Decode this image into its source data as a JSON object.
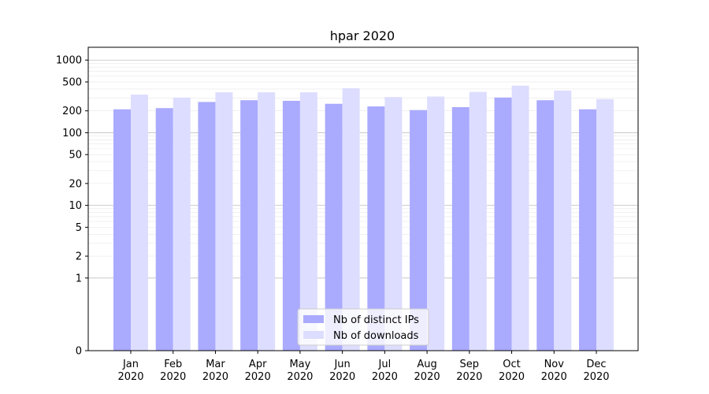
{
  "chart_data": {
    "type": "bar",
    "title": "hpar 2020",
    "xlabel": "",
    "ylabel": "",
    "scale": "symlog",
    "ylim": [
      0,
      1500
    ],
    "categories": [
      {
        "month": "Jan",
        "year": "2020"
      },
      {
        "month": "Feb",
        "year": "2020"
      },
      {
        "month": "Mar",
        "year": "2020"
      },
      {
        "month": "Apr",
        "year": "2020"
      },
      {
        "month": "May",
        "year": "2020"
      },
      {
        "month": "Jun",
        "year": "2020"
      },
      {
        "month": "Jul",
        "year": "2020"
      },
      {
        "month": "Aug",
        "year": "2020"
      },
      {
        "month": "Sep",
        "year": "2020"
      },
      {
        "month": "Oct",
        "year": "2020"
      },
      {
        "month": "Nov",
        "year": "2020"
      },
      {
        "month": "Dec",
        "year": "2020"
      }
    ],
    "series": [
      {
        "name": "Nb of distinct IPs",
        "color": "#aaaaff",
        "values": [
          210,
          218,
          265,
          280,
          275,
          250,
          230,
          205,
          225,
          305,
          280,
          210
        ]
      },
      {
        "name": "Nb of downloads",
        "color": "#ddddff",
        "values": [
          335,
          305,
          360,
          360,
          360,
          410,
          310,
          315,
          365,
          445,
          380,
          290
        ]
      }
    ],
    "yticks": [
      {
        "value": 0,
        "label": "0"
      },
      {
        "value": 1,
        "label": "1"
      },
      {
        "value": 2,
        "label": "2"
      },
      {
        "value": 5,
        "label": "5"
      },
      {
        "value": 10,
        "label": "10"
      },
      {
        "value": 20,
        "label": "20"
      },
      {
        "value": 50,
        "label": "50"
      },
      {
        "value": 100,
        "label": "100"
      },
      {
        "value": 200,
        "label": "200"
      },
      {
        "value": 500,
        "label": "500"
      },
      {
        "value": 1000,
        "label": "1000"
      }
    ],
    "grid": true,
    "legend_position": "bottom-center"
  }
}
